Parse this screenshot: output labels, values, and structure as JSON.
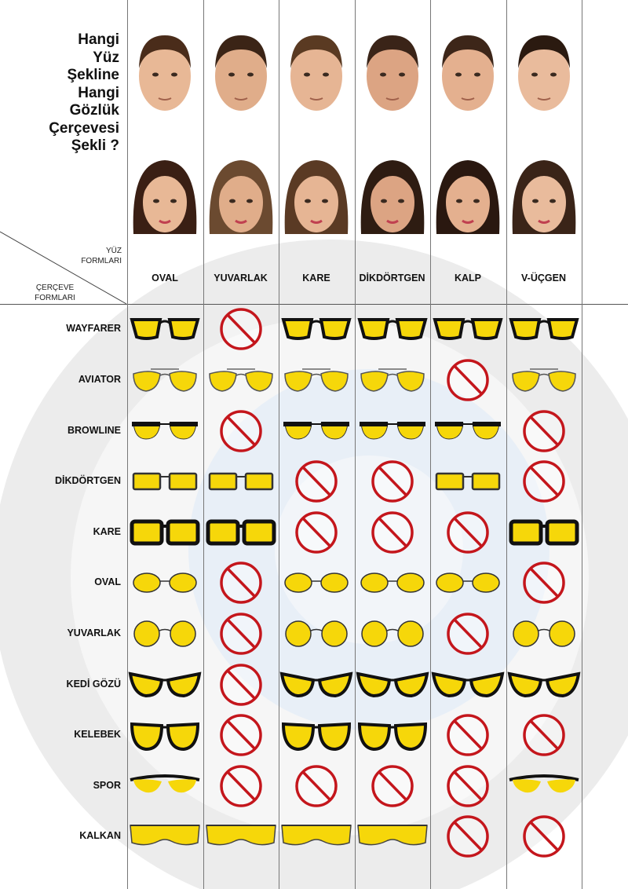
{
  "title": "Hangi\nYüz\nŞekline\nHangi\nGözlük\nÇerçevesi\nŞekli ?",
  "axis_labels": {
    "face": "YÜZ\nFORMLARI",
    "frame": "ÇERÇEVE\nFORMLARI"
  },
  "face_shapes": [
    "OVAL",
    "YUVARLAK",
    "KARE",
    "DİKDÖRTGEN",
    "KALP",
    "V-ÜÇGEN"
  ],
  "colors": {
    "lens": "#f6d70a",
    "frame": "#111111",
    "prohibited": "#c4161c",
    "watermark_gray": "#ebebeb",
    "watermark_blue": "#e6eef7"
  },
  "frames": [
    {
      "name": "WAYFARER",
      "suitable": [
        true,
        false,
        true,
        true,
        true,
        true
      ]
    },
    {
      "name": "AVIATOR",
      "suitable": [
        true,
        true,
        true,
        true,
        false,
        true
      ]
    },
    {
      "name": "BROWLINE",
      "suitable": [
        true,
        false,
        true,
        true,
        true,
        false
      ]
    },
    {
      "name": "DİKDÖRTGEN",
      "suitable": [
        true,
        true,
        false,
        false,
        true,
        false
      ]
    },
    {
      "name": "KARE",
      "suitable": [
        true,
        true,
        false,
        false,
        false,
        true
      ]
    },
    {
      "name": "OVAL",
      "suitable": [
        true,
        false,
        true,
        true,
        true,
        false
      ]
    },
    {
      "name": "YUVARLAK",
      "suitable": [
        true,
        false,
        true,
        true,
        false,
        true
      ]
    },
    {
      "name": "KEDİ GÖZÜ",
      "suitable": [
        true,
        false,
        true,
        true,
        true,
        true
      ]
    },
    {
      "name": "KELEBEK",
      "suitable": [
        true,
        false,
        true,
        true,
        false,
        false
      ]
    },
    {
      "name": "SPOR",
      "suitable": [
        true,
        false,
        false,
        false,
        false,
        true
      ]
    },
    {
      "name": "KALKAN",
      "suitable": [
        true,
        true,
        true,
        true,
        false,
        false
      ]
    }
  ]
}
